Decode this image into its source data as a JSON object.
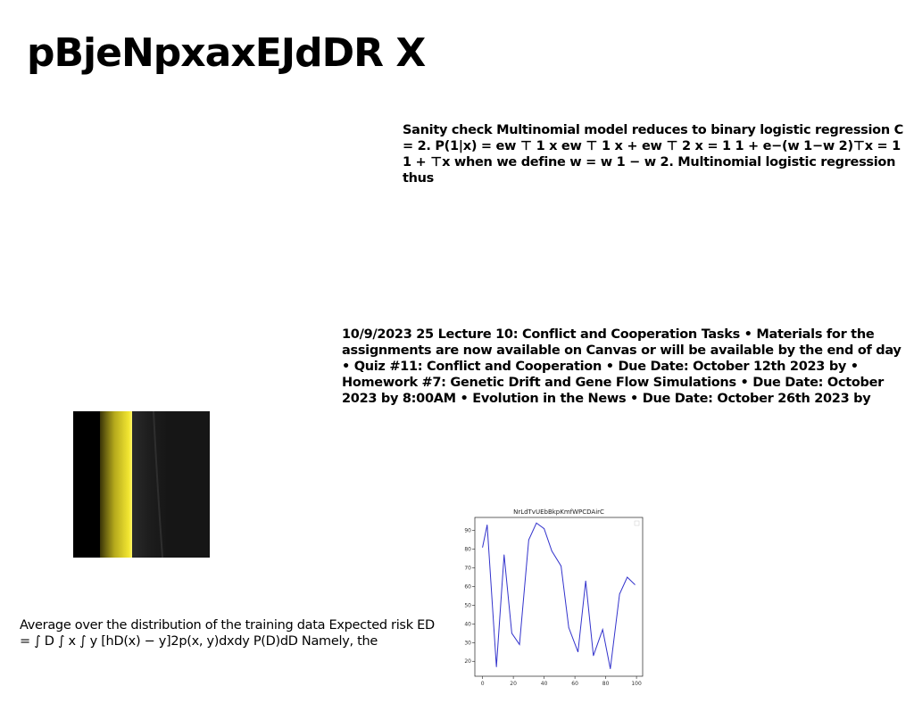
{
  "page": {
    "title": "pBjeNpxaxEJdDR X"
  },
  "blocks": {
    "block1": "Sanity check Multinomial model reduces to binary logistic regression C = 2. P(1|x) = ew ⊤ 1 x ew ⊤ 1 x + ew ⊤ 2 x = 1 1 + e−(w 1−w 2)⊤x = 1 1 + ⊤x when we define w = w 1 − w 2. Multinomial logistic regression thus",
    "block2": "10/9/2023 25 Lecture 10: Conflict and Cooperation Tasks • Materials for the assignments are now available on Canvas or will be available by the end of day • Quiz #11: Conflict and Cooperation • Due Date: October 12th 2023 by • Homework #7: Genetic Drift and Gene Flow Simulations • Due Date: October 2023 by 8:00AM • Evolution in the News • Due Date: October 26th 2023 by",
    "block3": "Average over the distribution of the training data Expected risk ED = ∫ D ∫ x ∫ y [hD(x) − y]2p(x, y)dxdy P(D)dD Namely, the"
  },
  "photo": {
    "bg_color": "#161616",
    "band_color": "#e8dc2a"
  },
  "chart_data": {
    "type": "line",
    "title": "NrLdTvUEbBkpKmfWPCDAirC",
    "xlabel": "",
    "ylabel": "",
    "xlim": [
      -5,
      104
    ],
    "ylim": [
      12,
      97
    ],
    "xticks": [
      0,
      20,
      40,
      60,
      80,
      100
    ],
    "yticks": [
      20,
      30,
      40,
      50,
      60,
      70,
      80,
      90
    ],
    "grid": false,
    "line_color": "#3333cc",
    "series": [
      {
        "x": [
          0,
          3,
          9,
          14,
          19,
          24,
          30,
          35,
          40,
          45,
          51,
          56,
          62,
          67,
          72,
          78,
          83,
          89,
          94,
          99
        ],
        "values": [
          81,
          93,
          17,
          77,
          35,
          29,
          85,
          94,
          91,
          79,
          71,
          38,
          25,
          63,
          23,
          37,
          16,
          56,
          65,
          61
        ]
      }
    ]
  }
}
